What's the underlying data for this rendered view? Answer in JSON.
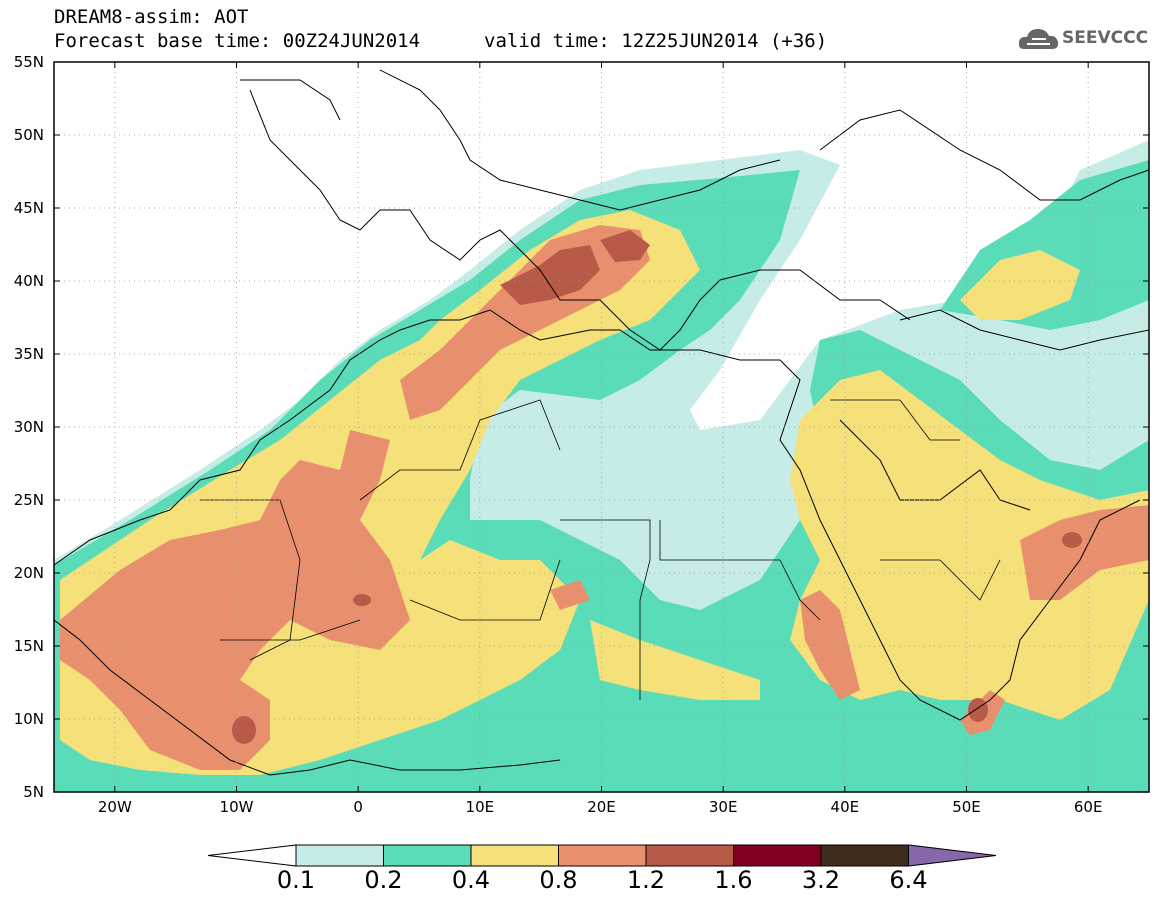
{
  "header": {
    "line1": "DREAM8-assim: AOT",
    "line2": "Forecast base time: 00Z24JUN2014",
    "valid": "valid time: 12Z25JUN2014 (+36)"
  },
  "logo": {
    "text": "SEEVCCC",
    "icon": "cloud-logo-icon"
  },
  "map": {
    "variable": "AOT",
    "lat_range": [
      5,
      55
    ],
    "lon_range": [
      -25,
      65
    ],
    "lat_ticks": [
      "55N",
      "50N",
      "45N",
      "40N",
      "35N",
      "30N",
      "25N",
      "20N",
      "15N",
      "10N",
      "5N"
    ],
    "lon_ticks": [
      "20W",
      "10W",
      "0",
      "10E",
      "20E",
      "30E",
      "40E",
      "50E",
      "60E"
    ],
    "grid": "dotted"
  },
  "colorbar": {
    "labels": [
      "0.1",
      "0.2",
      "0.4",
      "0.8",
      "1.2",
      "1.6",
      "3.2",
      "6.4"
    ],
    "colors": [
      "#c6ece8",
      "#5bdcb8",
      "#f5e07a",
      "#e8906e",
      "#b85a48",
      "#800020",
      "#3e2d1c"
    ],
    "under_color": "#ffffff",
    "over_color": "#8866aa"
  }
}
